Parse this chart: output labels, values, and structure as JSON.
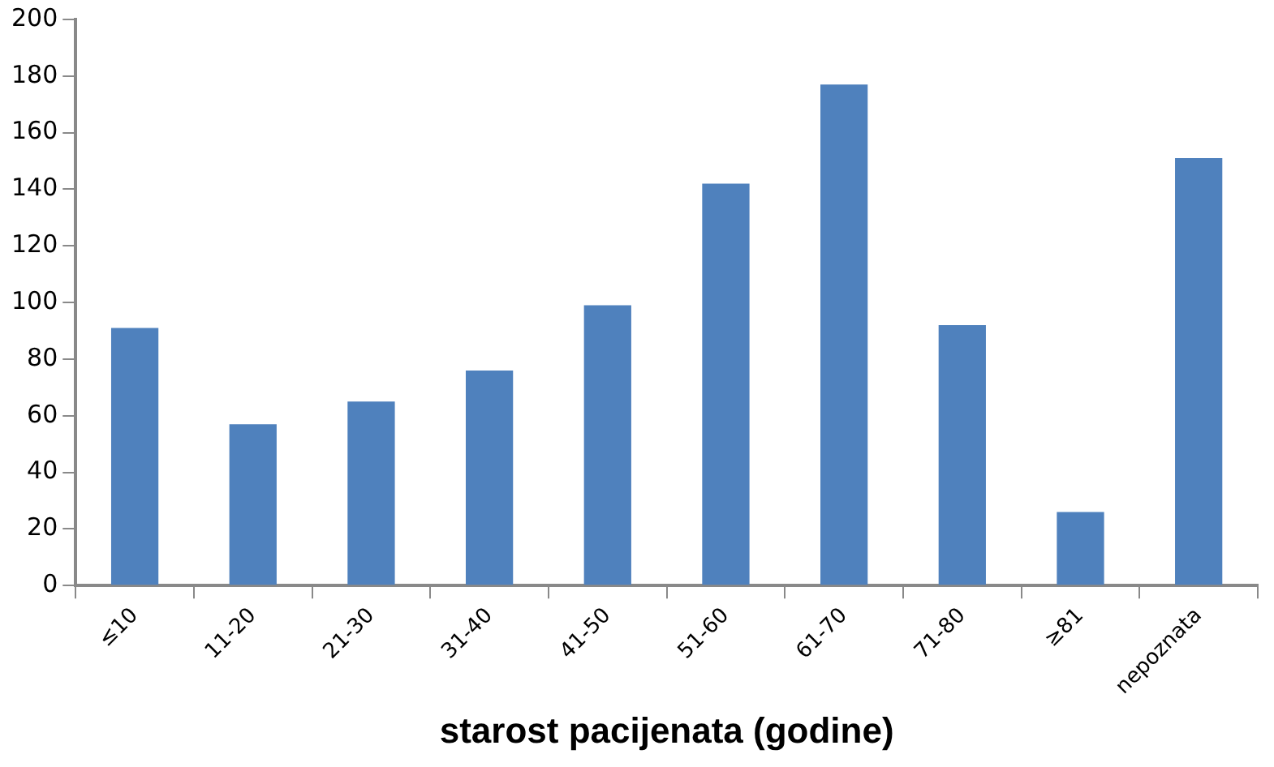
{
  "chart_data": {
    "type": "bar",
    "xlabel": "starost pacijenata (godine)",
    "categories": [
      "≤10",
      "11-20",
      "21-30",
      "31-40",
      "41-50",
      "51-60",
      "61-70",
      "71-80",
      "≥81",
      "nepoznata"
    ],
    "values": [
      91,
      57,
      65,
      76,
      99,
      142,
      177,
      92,
      26,
      151
    ],
    "color": "#4f81bd",
    "ylim": [
      0,
      200
    ],
    "yticks": [
      0,
      20,
      40,
      60,
      80,
      100,
      120,
      140,
      160,
      180,
      200
    ],
    "grid": false,
    "legend": false
  }
}
